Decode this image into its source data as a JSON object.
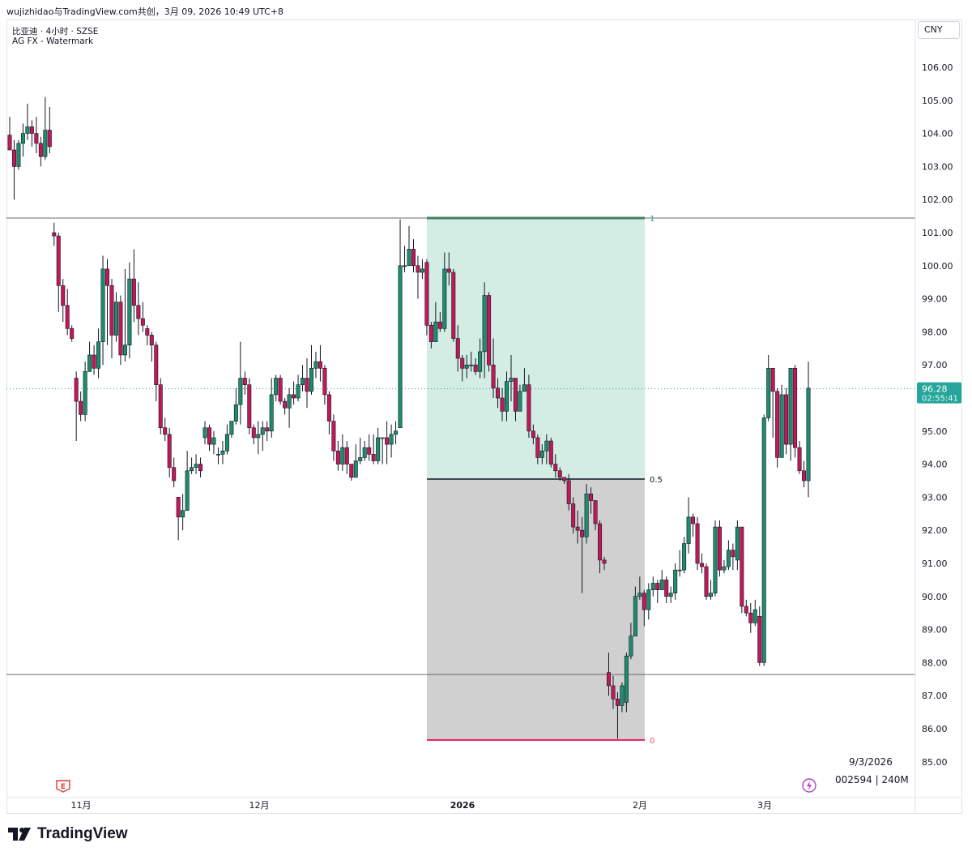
{
  "header": {
    "caption": "wujizhidao与TradingView.com共创，3月 09, 2026 10:49 UTC+8"
  },
  "legend": {
    "symbol_line": "比亚迪 · 4小时 · SZSE",
    "indicator_line": "AG FX - Watermark"
  },
  "currency_button": "CNY",
  "info_panel": {
    "date": "9/3/2026",
    "symbol_volume": "002594 | 240M"
  },
  "brand": {
    "name": "TradingView"
  },
  "icons": {
    "earnings": "earnings-flag-icon",
    "dividend": "lightning-icon",
    "logo": "tradingview-logo-icon"
  },
  "colors": {
    "up": "#26a69a",
    "down": "#ef5350",
    "up_body": "#1e8c6e",
    "down_body": "#c2185b",
    "fib_top": "#2e8b57",
    "fib_bottom": "#e91e63",
    "zone_upper": "#d3ece4",
    "zone_lower": "#d0d0d0",
    "last_price_bg": "#26a69a"
  },
  "chart_data": {
    "type": "candlestick",
    "x_axis_labels": [
      "11月",
      "12月",
      "2026",
      "2月",
      "3月"
    ],
    "y_axis": {
      "ticks": [
        "106.00",
        "105.00",
        "104.00",
        "103.00",
        "102.00",
        "101.00",
        "100.00",
        "99.00",
        "98.00",
        "97.00",
        "96.00",
        "95.00",
        "94.00",
        "93.00",
        "92.00",
        "91.00",
        "90.00",
        "89.00",
        "88.00",
        "87.00",
        "86.00",
        "85.00"
      ],
      "range": [
        84.5,
        106.8
      ]
    },
    "last_price": {
      "value": "96.28",
      "countdown": "02:55:41"
    },
    "horizontal_lines": [
      101.44,
      87.64
    ],
    "fib_retracement": {
      "levels": [
        {
          "ratio": "1",
          "price": 101.44
        },
        {
          "ratio": "0.5",
          "price": 93.55
        },
        {
          "ratio": "0",
          "price": 85.66
        }
      ]
    },
    "candles": [
      [
        103.95,
        103.5,
        104.5,
        103.6
      ],
      [
        103.5,
        103.0,
        103.8,
        102.0
      ],
      [
        103.0,
        103.7,
        103.8,
        102.9
      ],
      [
        103.7,
        104.0,
        104.3,
        103.3
      ],
      [
        104.0,
        104.2,
        104.9,
        103.8
      ],
      [
        104.2,
        104.0,
        104.4,
        103.6
      ],
      [
        104.0,
        103.7,
        104.5,
        103.4
      ],
      [
        103.7,
        103.3,
        103.9,
        103.0
      ],
      [
        103.3,
        104.1,
        105.1,
        103.2
      ],
      [
        104.1,
        103.6,
        104.8,
        103.4
      ],
      [
        101.0,
        100.9,
        101.3,
        100.6
      ],
      [
        100.9,
        99.4,
        101.0,
        98.6
      ],
      [
        99.4,
        98.8,
        99.6,
        98.3
      ],
      [
        98.8,
        98.1,
        99.3,
        97.9
      ],
      [
        98.1,
        97.8,
        98.2,
        97.7
      ],
      [
        96.6,
        95.9,
        96.8,
        94.7
      ],
      [
        95.9,
        95.5,
        96.2,
        95.3
      ],
      [
        95.5,
        96.8,
        97.1,
        95.3
      ],
      [
        96.8,
        97.3,
        97.7,
        97.0
      ],
      [
        97.3,
        96.9,
        97.6,
        96.7
      ],
      [
        96.9,
        97.7,
        98.1,
        96.6
      ],
      [
        97.7,
        99.9,
        100.3,
        97.0
      ],
      [
        99.9,
        99.4,
        100.2,
        97.6
      ],
      [
        99.4,
        97.9,
        99.6,
        97.2
      ],
      [
        97.9,
        98.9,
        99.2,
        97.7
      ],
      [
        98.9,
        97.3,
        99.1,
        97.0
      ],
      [
        97.3,
        97.6,
        99.9,
        97.1
      ],
      [
        97.6,
        99.6,
        100.1,
        97.2
      ],
      [
        99.6,
        98.8,
        100.5,
        98.3
      ],
      [
        98.8,
        98.4,
        99.5,
        97.9
      ],
      [
        98.4,
        98.2,
        98.9,
        98.0
      ],
      [
        98.1,
        97.9,
        98.2,
        97.6
      ],
      [
        97.9,
        97.6,
        98.0,
        97.1
      ],
      [
        97.6,
        96.4,
        97.7,
        95.9
      ],
      [
        96.4,
        95.1,
        96.6,
        94.9
      ],
      [
        95.1,
        94.9,
        95.4,
        94.7
      ],
      [
        94.9,
        93.9,
        95.1,
        93.6
      ],
      [
        93.9,
        93.5,
        94.2,
        93.3
      ],
      [
        93.0,
        92.4,
        93.0,
        91.7
      ],
      [
        92.4,
        92.6,
        93.1,
        92.0
      ],
      [
        92.6,
        93.8,
        94.4,
        93.3
      ],
      [
        93.8,
        93.9,
        94.2,
        93.7
      ],
      [
        93.9,
        94.0,
        94.3,
        93.7
      ],
      [
        94.0,
        93.8,
        94.2,
        93.6
      ],
      [
        94.8,
        95.1,
        95.3,
        94.6
      ],
      [
        95.1,
        94.6,
        95.2,
        94.4
      ],
      [
        94.6,
        94.8,
        95.0,
        94.3
      ],
      [
        94.3,
        94.3,
        94.5,
        94.0
      ],
      [
        94.3,
        94.4,
        94.7,
        94.0
      ],
      [
        94.4,
        94.9,
        95.2,
        94.3
      ],
      [
        94.9,
        95.3,
        95.3,
        94.8
      ],
      [
        95.3,
        95.8,
        96.3,
        95.2
      ],
      [
        95.8,
        96.6,
        97.7,
        95.2
      ],
      [
        96.6,
        96.4,
        96.8,
        96.1
      ],
      [
        96.4,
        95.1,
        96.6,
        94.9
      ],
      [
        95.1,
        94.8,
        95.2,
        94.6
      ],
      [
        94.8,
        94.9,
        95.3,
        94.3
      ],
      [
        94.9,
        95.1,
        95.3,
        94.4
      ],
      [
        95.1,
        95.0,
        95.3,
        94.7
      ],
      [
        95.0,
        96.1,
        96.6,
        94.8
      ],
      [
        96.1,
        96.6,
        96.7,
        95.9
      ],
      [
        96.6,
        95.9,
        96.7,
        95.8
      ],
      [
        95.9,
        95.7,
        96.0,
        95.5
      ],
      [
        95.7,
        96.1,
        96.3,
        95.1
      ],
      [
        96.1,
        96.0,
        96.5,
        95.8
      ],
      [
        96.0,
        96.4,
        96.7,
        95.9
      ],
      [
        96.4,
        96.6,
        97.0,
        96.2
      ],
      [
        96.6,
        96.2,
        97.2,
        95.7
      ],
      [
        96.2,
        96.9,
        97.6,
        96.1
      ],
      [
        96.9,
        97.1,
        97.4,
        96.6
      ],
      [
        97.1,
        96.9,
        97.6,
        96.5
      ],
      [
        96.9,
        96.1,
        97.0,
        95.8
      ],
      [
        96.1,
        95.3,
        96.2,
        94.9
      ],
      [
        95.3,
        94.4,
        95.5,
        94.1
      ],
      [
        94.4,
        94.0,
        94.7,
        93.8
      ],
      [
        94.0,
        94.5,
        94.9,
        93.8
      ],
      [
        94.5,
        94.0,
        94.7,
        93.7
      ],
      [
        94.0,
        93.6,
        94.0,
        93.5
      ],
      [
        93.6,
        94.1,
        94.6,
        93.9
      ],
      [
        94.1,
        94.2,
        94.8,
        94.0
      ],
      [
        94.2,
        94.5,
        94.7,
        94.1
      ],
      [
        94.5,
        94.3,
        94.9,
        94.1
      ],
      [
        94.3,
        94.1,
        94.9,
        94.0
      ],
      [
        94.1,
        94.8,
        95.1,
        94.0
      ],
      [
        94.8,
        94.8,
        94.8,
        94.0
      ],
      [
        94.8,
        94.6,
        95.3,
        94.0
      ],
      [
        94.6,
        94.9,
        95.2,
        94.2
      ],
      [
        94.9,
        95.0,
        95.3,
        94.6
      ],
      [
        95.1,
        100.0,
        101.4,
        95.2
      ],
      [
        100.0,
        100.0,
        100.6,
        99.8
      ],
      [
        100.0,
        100.5,
        101.2,
        100.1
      ],
      [
        100.5,
        100.0,
        100.8,
        99.8
      ],
      [
        100.0,
        99.8,
        100.3,
        99.0
      ],
      [
        99.8,
        99.9,
        100.2,
        99.6
      ],
      [
        100.1,
        98.2,
        100.2,
        97.9
      ],
      [
        98.2,
        97.7,
        98.3,
        97.5
      ],
      [
        97.7,
        98.3,
        98.9,
        97.9
      ],
      [
        98.3,
        98.1,
        98.6,
        98.0
      ],
      [
        98.1,
        99.9,
        100.4,
        98.0
      ],
      [
        99.9,
        99.8,
        100.4,
        99.4
      ],
      [
        99.8,
        97.8,
        99.9,
        97.7
      ],
      [
        97.8,
        97.2,
        98.2,
        96.8
      ],
      [
        97.2,
        96.9,
        97.3,
        96.5
      ],
      [
        96.9,
        97.0,
        97.3,
        96.6
      ],
      [
        97.0,
        97.0,
        97.4,
        96.8
      ],
      [
        97.0,
        96.8,
        97.2,
        96.7
      ],
      [
        96.8,
        97.4,
        97.8,
        96.6
      ],
      [
        97.4,
        99.1,
        99.5,
        96.6
      ],
      [
        99.1,
        97.0,
        99.2,
        96.8
      ],
      [
        97.0,
        96.3,
        97.8,
        96.0
      ],
      [
        96.3,
        96.0,
        96.6,
        95.7
      ],
      [
        96.0,
        95.6,
        96.3,
        95.3
      ],
      [
        95.6,
        96.5,
        96.8,
        95.3
      ],
      [
        96.5,
        96.6,
        97.3,
        95.9
      ],
      [
        96.6,
        95.6,
        96.6,
        95.3
      ],
      [
        95.6,
        96.2,
        96.4,
        95.6
      ],
      [
        96.2,
        96.4,
        96.9,
        96.2
      ],
      [
        96.4,
        95.0,
        96.7,
        94.8
      ],
      [
        95.0,
        94.8,
        95.2,
        94.6
      ],
      [
        94.8,
        94.2,
        94.9,
        94.0
      ],
      [
        94.2,
        94.4,
        94.6,
        94.0
      ],
      [
        94.4,
        94.7,
        94.9,
        94.0
      ],
      [
        94.7,
        94.0,
        94.8,
        93.9
      ],
      [
        94.0,
        93.8,
        94.3,
        93.6
      ],
      [
        93.8,
        93.6,
        93.9,
        93.5
      ],
      [
        93.6,
        93.5,
        93.6,
        93.4
      ],
      [
        93.5,
        92.8,
        93.7,
        92.6
      ],
      [
        92.8,
        92.1,
        93.0,
        91.9
      ],
      [
        92.1,
        92.0,
        92.6,
        91.6
      ],
      [
        92.0,
        91.8,
        92.4,
        90.1
      ],
      [
        91.8,
        93.1,
        93.4,
        91.6
      ],
      [
        93.1,
        92.9,
        93.3,
        92.5
      ],
      [
        92.9,
        92.2,
        92.9,
        92.0
      ],
      [
        92.2,
        91.1,
        92.3,
        90.7
      ],
      [
        91.1,
        91.0,
        91.2,
        90.8
      ],
      [
        87.7,
        87.3,
        88.3,
        87.0
      ],
      [
        87.3,
        86.9,
        87.6,
        86.6
      ],
      [
        86.9,
        86.7,
        87.1,
        85.7
      ],
      [
        86.7,
        87.3,
        87.4,
        86.5
      ],
      [
        86.8,
        88.2,
        88.3,
        86.5
      ],
      [
        88.2,
        88.8,
        89.2,
        88.1
      ],
      [
        88.8,
        90.0,
        90.3,
        88.8
      ],
      [
        90.0,
        90.1,
        90.6,
        89.9
      ],
      [
        90.1,
        89.6,
        90.2,
        89.1
      ],
      [
        89.6,
        90.2,
        90.4,
        89.3
      ],
      [
        90.2,
        90.4,
        90.6,
        90.0
      ],
      [
        90.4,
        90.2,
        90.5,
        89.8
      ],
      [
        90.2,
        90.5,
        90.8,
        90.2
      ],
      [
        90.5,
        90.0,
        90.6,
        89.8
      ],
      [
        90.0,
        90.1,
        90.3,
        89.8
      ],
      [
        90.1,
        90.8,
        91.0,
        89.9
      ],
      [
        90.8,
        90.8,
        91.4,
        90.6
      ],
      [
        90.8,
        91.6,
        91.8,
        90.7
      ],
      [
        91.6,
        92.4,
        93.0,
        91.3
      ],
      [
        92.4,
        92.2,
        92.5,
        91.8
      ],
      [
        92.2,
        91.0,
        92.4,
        90.8
      ],
      [
        91.0,
        90.9,
        91.3,
        90.7
      ],
      [
        90.9,
        90.0,
        91.0,
        89.9
      ],
      [
        90.0,
        90.1,
        90.5,
        89.9
      ],
      [
        90.1,
        92.1,
        92.3,
        90.0
      ],
      [
        92.1,
        90.8,
        92.3,
        90.6
      ],
      [
        90.8,
        90.9,
        91.1,
        90.7
      ],
      [
        90.9,
        91.4,
        91.7,
        90.8
      ],
      [
        91.4,
        91.2,
        91.6,
        90.8
      ],
      [
        91.1,
        92.1,
        92.3,
        90.8
      ],
      [
        92.1,
        89.7,
        92.1,
        89.5
      ],
      [
        89.7,
        89.5,
        89.9,
        89.4
      ],
      [
        89.5,
        89.2,
        89.8,
        88.9
      ],
      [
        89.2,
        89.6,
        89.9,
        89.1
      ],
      [
        89.4,
        88.0,
        89.7,
        87.9
      ],
      [
        88.0,
        95.4,
        95.5,
        87.9
      ],
      [
        95.4,
        96.9,
        97.3,
        95.3
      ],
      [
        96.9,
        96.2,
        96.6,
        94.8
      ],
      [
        96.2,
        94.2,
        96.3,
        93.9
      ],
      [
        94.2,
        96.1,
        96.4,
        94.8
      ],
      [
        96.1,
        94.6,
        96.3,
        94.3
      ],
      [
        94.6,
        96.9,
        96.9,
        94.1
      ],
      [
        96.9,
        94.5,
        97.0,
        94.2
      ],
      [
        94.5,
        93.8,
        94.7,
        93.7
      ],
      [
        93.8,
        93.5,
        94.1,
        93.3
      ],
      [
        93.5,
        96.3,
        97.1,
        93.0
      ]
    ]
  }
}
